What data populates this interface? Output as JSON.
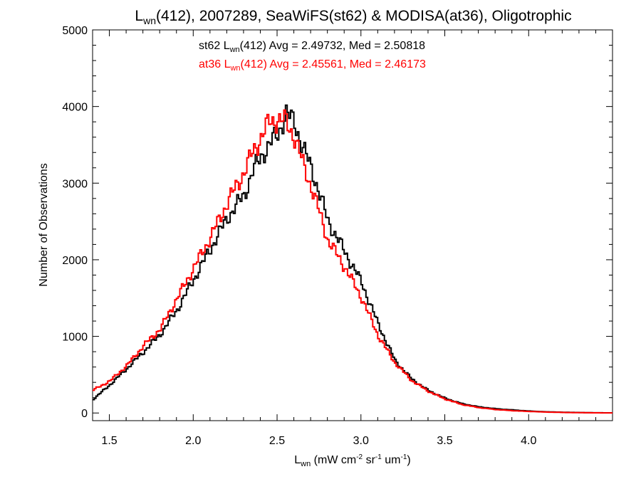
{
  "chart_data": {
    "type": "line",
    "title": {
      "main": "L",
      "sub": "wn",
      "rest": "(412), 2007289, SeaWiFS(st62) & MODISA(at36), Oligotrophic"
    },
    "xlabel": {
      "main": "L",
      "sub": "wn",
      "part1": " (mW cm",
      "sup1": "-2",
      "part2": " sr",
      "sup2": "-1",
      "part3": " um",
      "sup3": "-1",
      "part4": ")"
    },
    "ylabel": "Number of Observations",
    "xlim": [
      1.4,
      4.5
    ],
    "ylim": [
      -100,
      5000
    ],
    "x_ticks": [
      1.5,
      2.0,
      2.5,
      3.0,
      3.5,
      4.0
    ],
    "x_tick_labels": [
      "1.5",
      "2.0",
      "2.5",
      "3.0",
      "3.5",
      "4.0"
    ],
    "y_ticks": [
      0,
      1000,
      2000,
      3000,
      4000,
      5000
    ],
    "y_tick_labels": [
      "0",
      "1000",
      "2000",
      "3000",
      "4000",
      "5000"
    ],
    "grid": false,
    "annotations": [
      {
        "color": "#000000",
        "pre": "st62 L",
        "sub": "wn",
        "post": "(412) Avg = 2.49732, Med = 2.50818"
      },
      {
        "color": "#ff0000",
        "pre": "at36 L",
        "sub": "wn",
        "post": "(412) Avg = 2.45561, Med = 2.46173"
      }
    ],
    "series": [
      {
        "color": "#000000",
        "style": "step",
        "x": [
          1.4,
          1.5,
          1.6,
          1.7,
          1.8,
          1.9,
          2.0,
          2.1,
          2.2,
          2.3,
          2.35,
          2.4,
          2.45,
          2.5,
          2.55,
          2.6,
          2.65,
          2.7,
          2.8,
          2.9,
          3.0,
          3.1,
          3.2,
          3.3,
          3.4,
          3.5,
          3.6,
          3.7,
          3.8,
          3.9,
          4.0,
          4.1,
          4.2,
          4.3,
          4.4,
          4.5
        ],
        "values": [
          180,
          370,
          580,
          800,
          1030,
          1350,
          1750,
          2150,
          2550,
          2850,
          3150,
          3350,
          3500,
          3650,
          3900,
          3800,
          3450,
          3200,
          2500,
          2100,
          1700,
          1150,
          680,
          440,
          290,
          190,
          120,
          80,
          55,
          40,
          25,
          15,
          10,
          6,
          3,
          2
        ]
      },
      {
        "color": "#ff0000",
        "style": "step",
        "x": [
          1.4,
          1.5,
          1.6,
          1.7,
          1.8,
          1.9,
          2.0,
          2.1,
          2.2,
          2.3,
          2.35,
          2.4,
          2.45,
          2.5,
          2.55,
          2.6,
          2.65,
          2.7,
          2.8,
          2.9,
          3.0,
          3.1,
          3.2,
          3.3,
          3.4,
          3.5,
          3.6,
          3.7,
          3.8,
          3.9,
          4.0,
          4.1,
          4.2,
          4.3,
          4.4,
          4.5
        ],
        "values": [
          300,
          420,
          620,
          880,
          1100,
          1500,
          1900,
          2300,
          2750,
          3150,
          3400,
          3600,
          3800,
          3830,
          3800,
          3600,
          3250,
          2950,
          2250,
          1900,
          1500,
          1000,
          650,
          420,
          280,
          180,
          110,
          70,
          45,
          30,
          20,
          12,
          7,
          4,
          2,
          1
        ]
      }
    ]
  }
}
